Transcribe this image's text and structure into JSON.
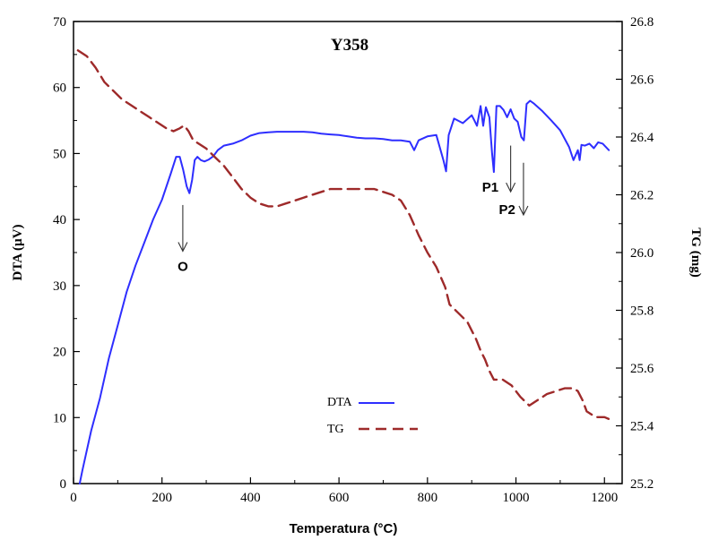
{
  "chart_data": {
    "type": "line",
    "title": "Y358",
    "xlabel": "Temperatura (°C)",
    "ylabel_left": "DTA (µV)",
    "ylabel_right": "TG (mg)",
    "xlim": [
      0,
      1240
    ],
    "ylim_left": [
      0,
      70
    ],
    "ylim_right": [
      25.2,
      26.8
    ],
    "xticks": [
      "0",
      "200",
      "400",
      "600",
      "800",
      "1000",
      "1200"
    ],
    "yticks_left": [
      "0",
      "10",
      "20",
      "30",
      "40",
      "50",
      "60",
      "70"
    ],
    "yticks_right": [
      "25.2",
      "25.4",
      "25.6",
      "25.8",
      "26.0",
      "26.2",
      "26.4",
      "26.6",
      "26.8"
    ],
    "grid": false,
    "legend_position": "bottom-center",
    "series": [
      {
        "name": "DTA",
        "axis": "left",
        "color": "#2e2eff",
        "style": "solid",
        "x": [
          14,
          20,
          30,
          40,
          60,
          80,
          100,
          120,
          140,
          160,
          180,
          200,
          220,
          232,
          240,
          248,
          256,
          262,
          268,
          274,
          280,
          288,
          296,
          306,
          316,
          326,
          340,
          360,
          380,
          400,
          420,
          440,
          460,
          480,
          500,
          520,
          540,
          560,
          580,
          600,
          620,
          640,
          660,
          680,
          700,
          720,
          740,
          760,
          770,
          780,
          800,
          820,
          836,
          842,
          848,
          860,
          880,
          900,
          906,
          912,
          920,
          926,
          932,
          940,
          946,
          950,
          956,
          964,
          972,
          980,
          988,
          996,
          1004,
          1012,
          1018,
          1024,
          1032,
          1040,
          1060,
          1080,
          1100,
          1120,
          1130,
          1140,
          1144,
          1148,
          1156,
          1166,
          1176,
          1186,
          1196,
          1210
        ],
        "y": [
          0,
          2,
          5,
          8,
          13,
          19,
          24,
          29,
          33,
          36.5,
          40,
          43,
          47,
          49.5,
          49.5,
          47.5,
          45,
          44,
          46,
          49,
          49.5,
          49,
          48.8,
          49.1,
          49.6,
          50.5,
          51.2,
          51.5,
          52,
          52.7,
          53.1,
          53.2,
          53.3,
          53.3,
          53.3,
          53.3,
          53.2,
          53,
          52.9,
          52.8,
          52.6,
          52.4,
          52.3,
          52.3,
          52.2,
          52,
          52,
          51.8,
          50.5,
          52,
          52.6,
          52.8,
          49,
          47.3,
          52.8,
          55.3,
          54.6,
          55.8,
          55,
          54.2,
          57.2,
          54.2,
          57,
          55.5,
          50,
          47.2,
          57.2,
          57.2,
          56.6,
          55.5,
          56.7,
          55.3,
          54.8,
          52.5,
          52,
          57.5,
          58,
          57.6,
          56.4,
          55,
          53.5,
          51,
          49,
          50.5,
          49,
          51.3,
          51.2,
          51.5,
          50.8,
          51.7,
          51.5,
          50.5
        ]
      },
      {
        "name": "TG",
        "axis": "right",
        "color": "#9e2a2a",
        "style": "dashed",
        "x": [
          10,
          30,
          50,
          70,
          90,
          110,
          130,
          150,
          170,
          190,
          210,
          226,
          240,
          250,
          260,
          270,
          280,
          300,
          320,
          340,
          360,
          380,
          400,
          420,
          440,
          460,
          480,
          500,
          520,
          540,
          560,
          580,
          600,
          620,
          640,
          660,
          680,
          700,
          720,
          740,
          760,
          780,
          800,
          820,
          840,
          850,
          870,
          890,
          910,
          920,
          930,
          940,
          950,
          970,
          990,
          1010,
          1030,
          1050,
          1070,
          1090,
          1110,
          1130,
          1140,
          1150,
          1160,
          1180,
          1200,
          1215
        ],
        "y": [
          26.7,
          26.68,
          26.64,
          26.59,
          26.56,
          26.53,
          26.51,
          26.49,
          26.47,
          26.45,
          26.43,
          26.42,
          26.43,
          26.44,
          26.42,
          26.39,
          26.38,
          26.36,
          26.33,
          26.3,
          26.26,
          26.22,
          26.19,
          26.17,
          26.16,
          26.16,
          26.17,
          26.18,
          26.19,
          26.2,
          26.21,
          26.22,
          26.22,
          26.22,
          26.22,
          26.22,
          26.22,
          26.21,
          26.2,
          26.18,
          26.13,
          26.06,
          26.0,
          25.95,
          25.88,
          25.82,
          25.79,
          25.76,
          25.7,
          25.66,
          25.63,
          25.59,
          25.56,
          25.56,
          25.54,
          25.5,
          25.47,
          25.49,
          25.51,
          25.52,
          25.53,
          25.53,
          25.52,
          25.49,
          25.45,
          25.43,
          25.43,
          25.42
        ]
      }
    ],
    "annotations": [
      {
        "text": "O",
        "arrow_x": 247,
        "arrow_y_from": 42.2,
        "arrow_y_to": 35.2,
        "label_x": 247,
        "label_y": 32.2
      },
      {
        "text": "P1",
        "arrow_x": 988,
        "arrow_y_from": 51.2,
        "arrow_y_to": 44.2,
        "label_x": 942,
        "label_y": 44.2
      },
      {
        "text": "P2",
        "arrow_x": 1017,
        "arrow_y_from": 48.6,
        "arrow_y_to": 40.7,
        "label_x": 980,
        "label_y": 40.8
      }
    ]
  }
}
